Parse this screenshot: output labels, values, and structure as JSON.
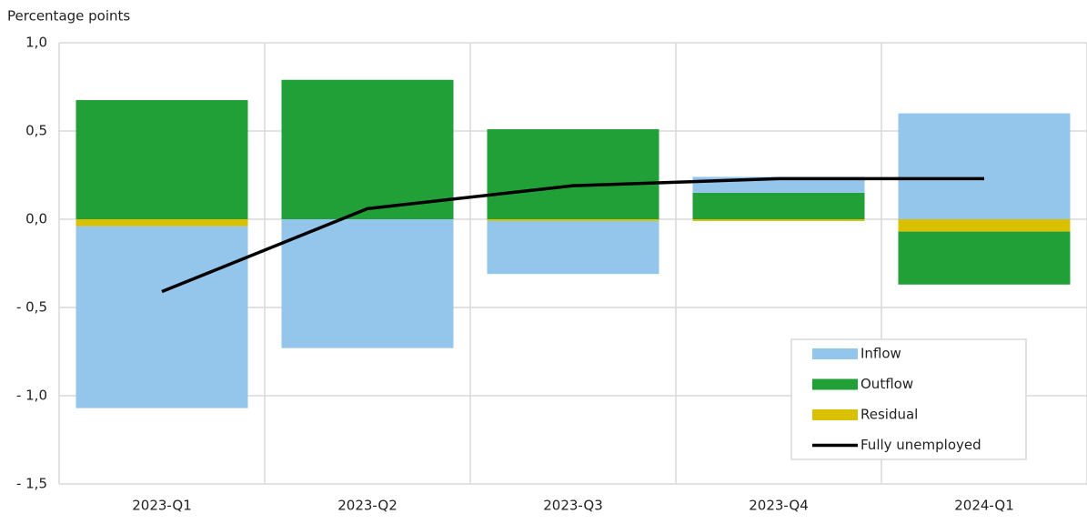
{
  "chart_data": {
    "type": "bar",
    "y_label": "Percentage points",
    "categories": [
      "2023-Q1",
      "2023-Q2",
      "2023-Q3",
      "2023-Q4",
      "2024-Q1"
    ],
    "series": [
      {
        "name": "Inflow",
        "color": "#94c5eb",
        "values": [
          -1.03,
          -0.73,
          -0.3,
          0.09,
          0.6
        ]
      },
      {
        "name": "Outflow",
        "color": "#21a038",
        "values": [
          0.675,
          0.79,
          0.51,
          0.15,
          -0.3
        ]
      },
      {
        "name": "Residual",
        "color": "#d9c000",
        "values": [
          -0.04,
          0.0,
          -0.01,
          -0.01,
          -0.07
        ]
      },
      {
        "name": "Fully unemployed",
        "color": "#000000",
        "type": "line",
        "values": [
          -0.41,
          0.06,
          0.19,
          0.23,
          0.23
        ]
      }
    ],
    "stacked": true,
    "ylim": [
      -1.5,
      1.0
    ],
    "yticks": [
      {
        "value": -1.5,
        "label": "- 1,5"
      },
      {
        "value": -1.0,
        "label": "- 1,0"
      },
      {
        "value": -0.5,
        "label": "- 0,5"
      },
      {
        "value": 0,
        "label": "0,0"
      },
      {
        "value": 0.5,
        "label": "0,5"
      },
      {
        "value": 1.0,
        "label": "1,0"
      }
    ],
    "grid": true,
    "legend": "lower right"
  }
}
